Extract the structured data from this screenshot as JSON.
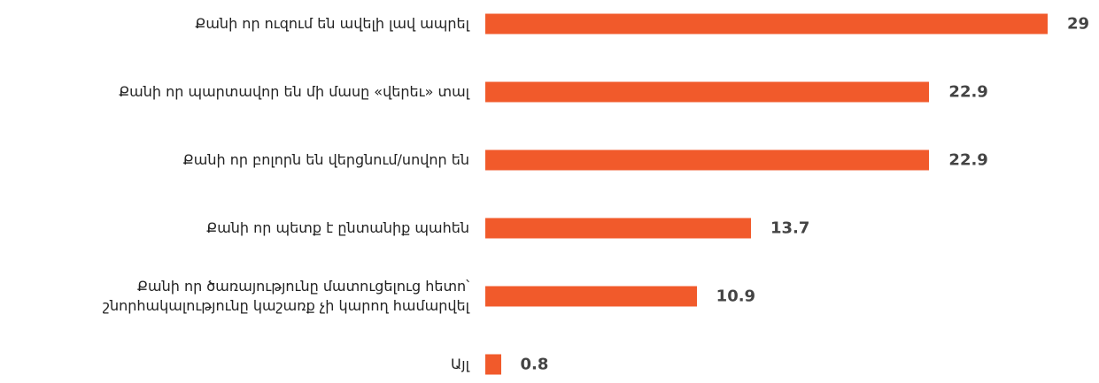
{
  "chart_data": {
    "type": "bar",
    "orientation": "horizontal",
    "categories": [
      "Քանի որ ուզում են ավելի լավ ապրել",
      "Քանի որ պարտավոր են մի մասը «վերեւ» տալ",
      "Քանի որ բոլորն են վերցնում/սովոր են",
      "Քանի որ պետք է ընտանիք պահեն",
      "Քանի որ ծառայությունը մատուցելուց հետո՝\nշնորհակալությունը կաշառք չի կարող համարվել",
      "Այլ"
    ],
    "values": [
      29,
      22.9,
      22.9,
      13.7,
      10.9,
      0.8
    ],
    "color": "#f15a2b"
  }
}
